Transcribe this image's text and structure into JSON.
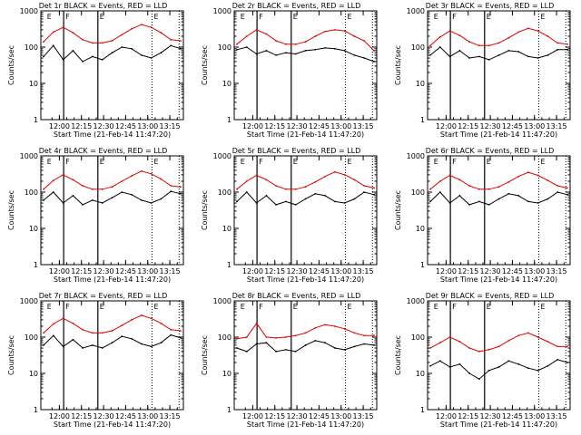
{
  "common": {
    "xlabel": "Start Time (21-Feb-14 11:47:20)",
    "ylabel": "Counts/sec",
    "title_suffix": "BLACK = Events, RED = LLD",
    "x_ticks": [
      "12:00",
      "12:15",
      "12:30",
      "12:45",
      "13:00",
      "13:15"
    ],
    "y_ticks": [
      "1",
      "10",
      "100",
      "1000"
    ],
    "marker_labels": [
      "E",
      "F",
      "E",
      "E"
    ],
    "colors": {
      "events": "#000000",
      "lld": "#e00000",
      "background": "#ffffff"
    }
  },
  "chart_data": [
    {
      "type": "line",
      "title": "Det 1r BLACK = Events, RED = LLD",
      "ylim": [
        1,
        1000
      ],
      "y_scale": "log",
      "x_range": [
        "11:47:20",
        "13:25:00"
      ],
      "series": [
        {
          "name": "Events",
          "values": [
            55,
            110,
            45,
            80,
            40,
            55,
            45,
            70,
            100,
            90,
            60,
            50,
            70,
            110,
            90
          ]
        },
        {
          "name": "LLD",
          "values": [
            140,
            260,
            350,
            250,
            160,
            130,
            130,
            150,
            220,
            320,
            420,
            350,
            250,
            160,
            150
          ]
        }
      ]
    },
    {
      "type": "line",
      "title": "Det 2r BLACK = Events, RED = LLD",
      "ylim": [
        1,
        1000
      ],
      "y_scale": "log",
      "series": [
        {
          "name": "Events",
          "values": [
            85,
            100,
            65,
            80,
            60,
            70,
            65,
            80,
            85,
            95,
            90,
            80,
            60,
            50,
            40
          ]
        },
        {
          "name": "LLD",
          "values": [
            120,
            200,
            300,
            230,
            150,
            120,
            120,
            140,
            200,
            270,
            300,
            280,
            200,
            150,
            80
          ]
        }
      ]
    },
    {
      "type": "line",
      "title": "Det 3r BLACK = Events, RED = LLD",
      "ylim": [
        1,
        1000
      ],
      "y_scale": "log",
      "series": [
        {
          "name": "Events",
          "values": [
            60,
            100,
            55,
            80,
            50,
            55,
            45,
            60,
            80,
            75,
            55,
            50,
            60,
            85,
            85
          ]
        },
        {
          "name": "LLD",
          "values": [
            110,
            190,
            280,
            210,
            140,
            110,
            110,
            130,
            180,
            260,
            330,
            280,
            200,
            130,
            120
          ]
        }
      ]
    },
    {
      "type": "line",
      "title": "Det 4r BLACK = Events, RED = LLD",
      "ylim": [
        1,
        1000
      ],
      "y_scale": "log",
      "series": [
        {
          "name": "Events",
          "values": [
            60,
            100,
            50,
            80,
            45,
            60,
            50,
            70,
            100,
            85,
            60,
            50,
            65,
            105,
            90
          ]
        },
        {
          "name": "LLD",
          "values": [
            120,
            210,
            300,
            220,
            150,
            120,
            120,
            140,
            200,
            280,
            380,
            320,
            230,
            150,
            140
          ]
        }
      ]
    },
    {
      "type": "line",
      "title": "Det 5r BLACK = Events, RED = LLD",
      "ylim": [
        1,
        1000
      ],
      "y_scale": "log",
      "series": [
        {
          "name": "Events",
          "values": [
            55,
            100,
            50,
            80,
            45,
            55,
            45,
            65,
            90,
            80,
            55,
            50,
            65,
            100,
            85
          ]
        },
        {
          "name": "LLD",
          "values": [
            120,
            200,
            290,
            220,
            150,
            120,
            120,
            140,
            190,
            270,
            360,
            300,
            220,
            150,
            130
          ]
        }
      ]
    },
    {
      "type": "line",
      "title": "Det 6r BLACK = Events, RED = LLD",
      "ylim": [
        1,
        1000
      ],
      "y_scale": "log",
      "series": [
        {
          "name": "Events",
          "values": [
            55,
            100,
            50,
            80,
            45,
            55,
            45,
            65,
            90,
            80,
            55,
            50,
            65,
            100,
            85
          ]
        },
        {
          "name": "LLD",
          "values": [
            120,
            200,
            290,
            220,
            150,
            120,
            120,
            140,
            190,
            270,
            350,
            290,
            210,
            150,
            130
          ]
        }
      ]
    },
    {
      "type": "line",
      "title": "Det 7r BLACK = Events, RED = LLD",
      "ylim": [
        1,
        1000
      ],
      "y_scale": "log",
      "series": [
        {
          "name": "Events",
          "values": [
            60,
            110,
            55,
            85,
            50,
            60,
            50,
            70,
            105,
            90,
            65,
            55,
            70,
            115,
            95
          ]
        },
        {
          "name": "LLD",
          "values": [
            130,
            230,
            330,
            240,
            160,
            130,
            130,
            150,
            210,
            300,
            400,
            330,
            240,
            160,
            150
          ]
        }
      ]
    },
    {
      "type": "line",
      "title": "Det 8r BLACK = Events, RED = LLD",
      "ylim": [
        1,
        1000
      ],
      "y_scale": "log",
      "series": [
        {
          "name": "Events",
          "values": [
            50,
            40,
            65,
            70,
            40,
            45,
            40,
            60,
            80,
            70,
            50,
            45,
            55,
            65,
            60
          ]
        },
        {
          "name": "LLD",
          "values": [
            90,
            100,
            240,
            100,
            95,
            100,
            110,
            130,
            180,
            220,
            200,
            170,
            130,
            110,
            110
          ]
        }
      ]
    },
    {
      "type": "line",
      "title": "Det 9r BLACK = Events, RED = LLD",
      "ylim": [
        1,
        1000
      ],
      "y_scale": "log",
      "series": [
        {
          "name": "Events",
          "values": [
            16,
            22,
            15,
            18,
            10,
            7,
            12,
            15,
            22,
            18,
            14,
            12,
            16,
            24,
            20
          ]
        },
        {
          "name": "LLD",
          "values": [
            50,
            70,
            100,
            75,
            50,
            40,
            45,
            55,
            80,
            110,
            130,
            100,
            75,
            55,
            55
          ]
        }
      ]
    }
  ]
}
